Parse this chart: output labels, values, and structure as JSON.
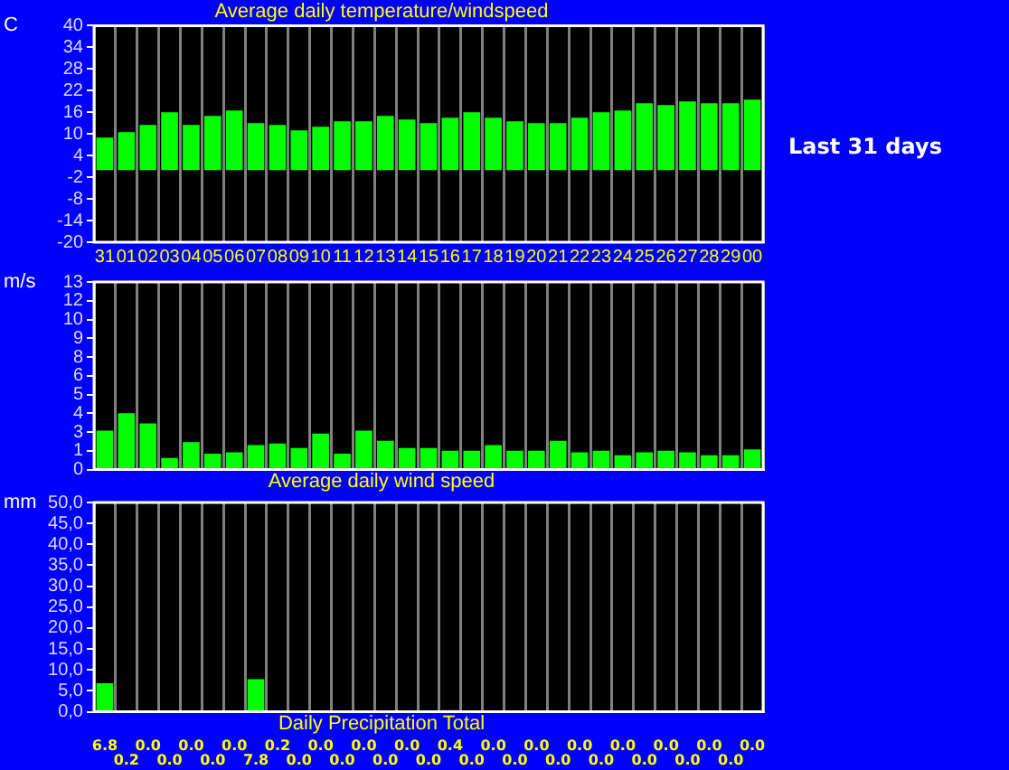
{
  "chart_data": [
    {
      "type": "bar",
      "title": "Average daily temperature/windspeed",
      "ylabel": "C",
      "annotations": [
        "Last 31 days"
      ],
      "categories": [
        "31",
        "01",
        "02",
        "03",
        "04",
        "05",
        "06",
        "07",
        "08",
        "09",
        "10",
        "11",
        "12",
        "13",
        "14",
        "15",
        "16",
        "17",
        "18",
        "19",
        "20",
        "21",
        "22",
        "23",
        "24",
        "25",
        "26",
        "27",
        "28",
        "29",
        "00"
      ],
      "series": [
        {
          "color": "#00ff00",
          "values": [
            9,
            10.5,
            12.5,
            16,
            12.5,
            15,
            16.5,
            13,
            12.5,
            11,
            12,
            13.5,
            13.5,
            15,
            14,
            13,
            14.5,
            16,
            14.5,
            13.5,
            13,
            13,
            14.5,
            16,
            16.5,
            18.5,
            18,
            19,
            18.5,
            18.5,
            19.5
          ]
        }
      ],
      "ylim": [
        -20,
        40
      ],
      "yticks": [
        -20,
        -14,
        -8,
        -2,
        4,
        10,
        16,
        22,
        28,
        34,
        40
      ],
      "grid": "x"
    },
    {
      "type": "bar",
      "title": "Average daily wind speed",
      "ylabel": "m/s",
      "categories": [
        "31",
        "01",
        "02",
        "03",
        "04",
        "05",
        "06",
        "07",
        "08",
        "09",
        "10",
        "11",
        "12",
        "13",
        "14",
        "15",
        "16",
        "17",
        "18",
        "19",
        "20",
        "21",
        "22",
        "23",
        "24",
        "25",
        "26",
        "27",
        "28",
        "29",
        "00"
      ],
      "series": [
        {
          "color": "#00ff00",
          "values": [
            2.7,
            3.9,
            3.2,
            0.8,
            1.9,
            1.1,
            1.2,
            1.7,
            1.8,
            1.5,
            2.5,
            1.1,
            2.7,
            2.0,
            1.5,
            1.5,
            1.3,
            1.3,
            1.7,
            1.3,
            1.3,
            2.0,
            1.2,
            1.3,
            1.0,
            1.2,
            1.3,
            1.2,
            1.0,
            1.0,
            1.4
          ]
        }
      ],
      "ylim": [
        0,
        13
      ],
      "yticks": [
        0,
        {
          "value": 1.3,
          "label": "1"
        },
        {
          "value": 2.6,
          "label": "3"
        },
        {
          "value": 3.9,
          "label": "4"
        },
        {
          "value": 5.2,
          "label": "5"
        },
        {
          "value": 6.5,
          "label": "6"
        },
        {
          "value": 7.8,
          "label": "8"
        },
        {
          "value": 9.1,
          "label": "9"
        },
        {
          "value": 10.4,
          "label": "10"
        },
        {
          "value": 11.7,
          "label": "12"
        },
        13
      ],
      "grid": "x",
      "tick_labels": "y"
    },
    {
      "type": "bar",
      "title": "Daily Precipitation Total",
      "ylabel": "mm",
      "categories": [
        "31",
        "01",
        "02",
        "03",
        "04",
        "05",
        "06",
        "07",
        "08",
        "09",
        "10",
        "11",
        "12",
        "13",
        "14",
        "15",
        "16",
        "17",
        "18",
        "19",
        "20",
        "21",
        "22",
        "23",
        "24",
        "25",
        "26",
        "27",
        "28",
        "29",
        "00"
      ],
      "series": [
        {
          "color": "#00ff00",
          "values": [
            6.8,
            0.2,
            0,
            0,
            0,
            0,
            0,
            7.8,
            0.2,
            0,
            0,
            0,
            0,
            0,
            0,
            0,
            0.4,
            0,
            0,
            0,
            0,
            0,
            0,
            0,
            0,
            0,
            0,
            0,
            0,
            0,
            0
          ],
          "value_labels": [
            "6.8",
            "0.2",
            "0.0",
            "0.0",
            "0.0",
            "0.0",
            "0.0",
            "7.8",
            "0.2",
            "0.0",
            "0.0",
            "0.0",
            "0.0",
            "0.0",
            "0.0",
            "0.0",
            "0.4",
            "0.0",
            "0.0",
            "0.0",
            "0.0",
            "0.0",
            "0.0",
            "0.0",
            "0.0",
            "0.0",
            "0.0",
            "0.0",
            "0.0",
            "0.0",
            "0.0"
          ]
        }
      ],
      "ylim": [
        0,
        50
      ],
      "yticks": [
        {
          "value": 0,
          "label": "0,0"
        },
        {
          "value": 5,
          "label": "5,0"
        },
        {
          "value": 10,
          "label": "10,0"
        },
        {
          "value": 15,
          "label": "15,0"
        },
        {
          "value": 20,
          "label": "20,0"
        },
        {
          "value": 25,
          "label": "25,0"
        },
        {
          "value": 30,
          "label": "30,0"
        },
        {
          "value": 35,
          "label": "35,0"
        },
        {
          "value": 40,
          "label": "40,0"
        },
        {
          "value": 45,
          "label": "45,0"
        },
        {
          "value": 50,
          "label": "50,0"
        }
      ],
      "grid": "x",
      "tick_labels": "y"
    }
  ]
}
